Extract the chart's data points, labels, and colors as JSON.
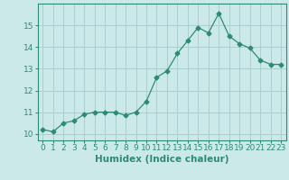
{
  "x": [
    0,
    1,
    2,
    3,
    4,
    5,
    6,
    7,
    8,
    9,
    10,
    11,
    12,
    13,
    14,
    15,
    16,
    17,
    18,
    19,
    20,
    21,
    22,
    23
  ],
  "y": [
    10.2,
    10.1,
    10.5,
    10.6,
    10.9,
    11.0,
    11.0,
    11.0,
    10.85,
    11.0,
    11.5,
    12.6,
    12.9,
    13.7,
    14.3,
    14.9,
    14.65,
    15.55,
    14.5,
    14.15,
    13.95,
    13.4,
    13.2,
    13.2
  ],
  "line_color": "#2e8b72",
  "marker": "D",
  "marker_size": 2.5,
  "bg_color": "#cce9e9",
  "grid_color": "#aacece",
  "xlabel": "Humidex (Indice chaleur)",
  "ylim": [
    9.7,
    16.0
  ],
  "xlim": [
    -0.5,
    23.5
  ],
  "yticks": [
    10,
    11,
    12,
    13,
    14,
    15
  ],
  "xticks": [
    0,
    1,
    2,
    3,
    4,
    5,
    6,
    7,
    8,
    9,
    10,
    11,
    12,
    13,
    14,
    15,
    16,
    17,
    18,
    19,
    20,
    21,
    22,
    23
  ],
  "tick_fontsize": 6.5,
  "xlabel_fontsize": 7.5
}
